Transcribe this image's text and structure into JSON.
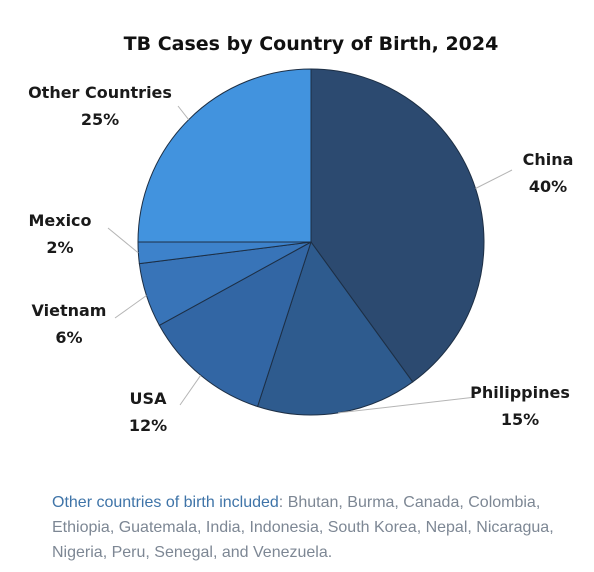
{
  "chart_data": {
    "type": "pie",
    "title": "TB Cases by Country of Birth, 2024",
    "slices": [
      {
        "label": "China",
        "value": 40,
        "value_label": "40%",
        "color": "#2c4a70"
      },
      {
        "label": "Philippines",
        "value": 15,
        "value_label": "15%",
        "color": "#2e5b8e"
      },
      {
        "label": "USA",
        "value": 12,
        "value_label": "12%",
        "color": "#3266a4"
      },
      {
        "label": "Vietnam",
        "value": 6,
        "value_label": "6%",
        "color": "#3874b8"
      },
      {
        "label": "Mexico",
        "value": 2,
        "value_label": "2%",
        "color": "#3d82cb"
      },
      {
        "label": "Other Countries",
        "value": 25,
        "value_label": "25%",
        "color": "#4293de"
      }
    ],
    "start_angle_deg": 0,
    "direction": "clockwise",
    "legend": "none"
  },
  "footnote": {
    "lead": "Other countries of birth included",
    "text": ": Bhutan, Burma, Canada, Colombia, Ethiopia, Guatemala, India, Indonesia, South Korea, Nepal, Nicaragua, Nigeria, Peru, Senegal, and Venezuela."
  },
  "colors": {
    "slice_outline": "#1d2f45",
    "footnote_lead": "#3f74a8",
    "footnote_text": "#7d8794"
  }
}
